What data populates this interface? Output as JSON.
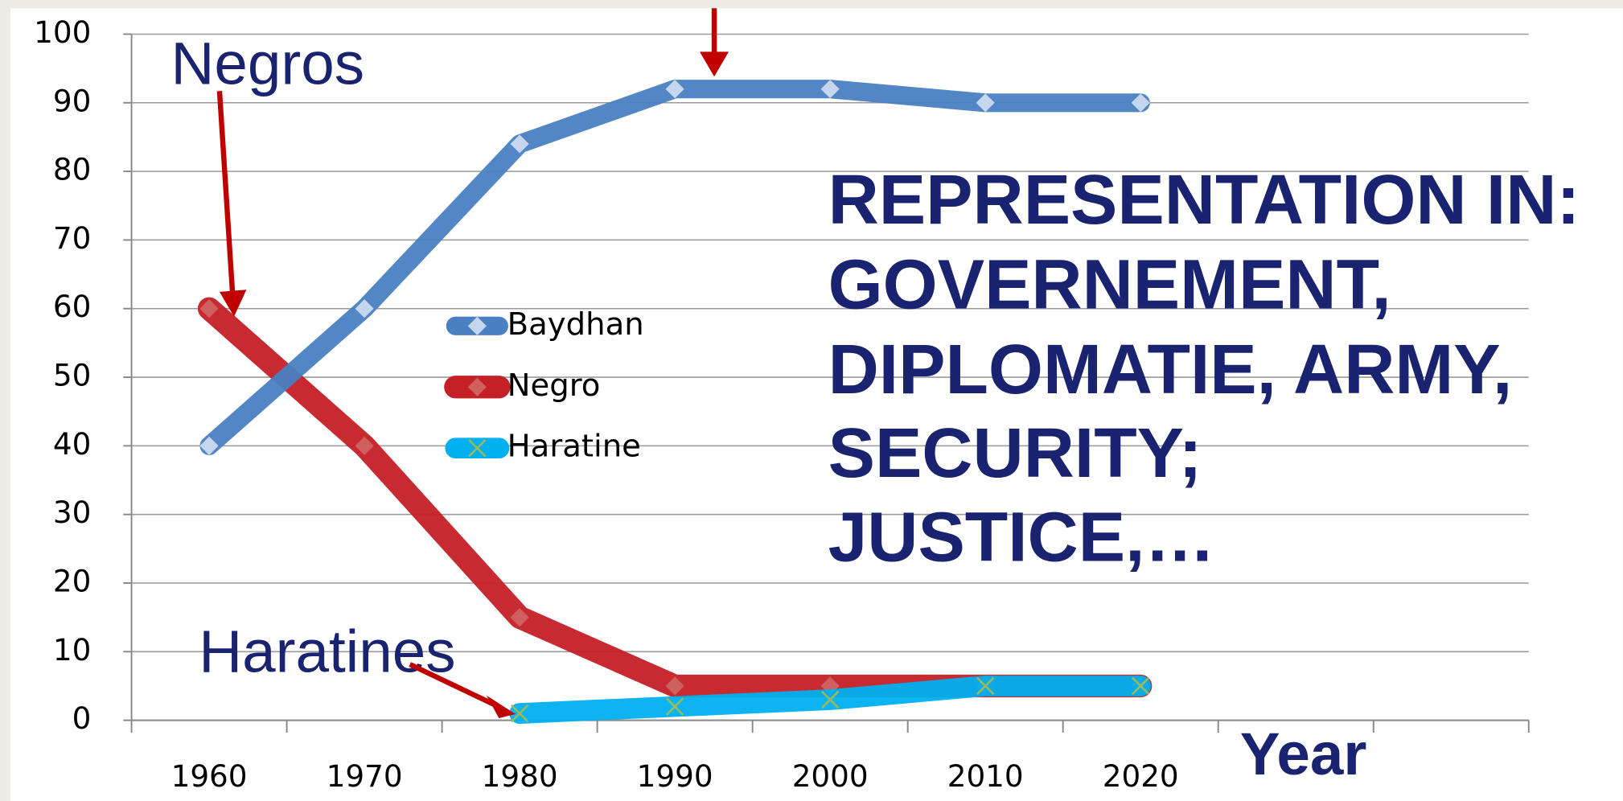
{
  "chart_data": {
    "type": "line",
    "categories": [
      "1960",
      "1970",
      "1980",
      "1990",
      "2000",
      "2010",
      "2020",
      null,
      null
    ],
    "series": [
      {
        "name": "Baydhan",
        "color": "#4a7fc1",
        "values": [
          40,
          60,
          84,
          92,
          92,
          90,
          90,
          null,
          null
        ]
      },
      {
        "name": "Negro",
        "color": "#c42026",
        "values": [
          60,
          40,
          15,
          5,
          5,
          5,
          5,
          null,
          null
        ]
      },
      {
        "name": "Haratine",
        "color": "#00b0f0",
        "values": [
          null,
          null,
          1,
          2,
          3,
          5,
          5,
          null,
          null
        ]
      }
    ],
    "ylim": [
      0,
      100
    ],
    "yticks": [
      0,
      10,
      20,
      30,
      40,
      50,
      60,
      70,
      80,
      90,
      100
    ],
    "grid": true,
    "x_label": "Year",
    "annotations": [
      "Negros",
      "Haratines"
    ],
    "text_block": [
      "REPRESENTATION IN:",
      "GOVERNEMENT,",
      "DIPLOMATIE, ARMY,",
      "SECURITY;",
      "JUSTICE,…"
    ]
  }
}
